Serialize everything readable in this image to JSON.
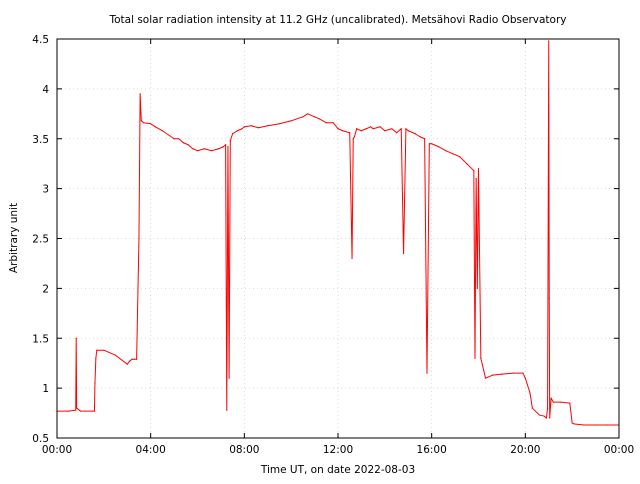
{
  "chart_data": {
    "type": "line",
    "title": "Total solar radiation intensity at 11.2 GHz (uncalibrated). Metsähovi Radio Observatory",
    "xlabel": "Time UT, on date 2022-08-03",
    "ylabel": "Arbitrary unit",
    "xlim": [
      0,
      24
    ],
    "ylim": [
      0.5,
      4.5
    ],
    "grid": true,
    "x_ticks": [
      {
        "value": 0,
        "label": "00:00"
      },
      {
        "value": 4,
        "label": "04:00"
      },
      {
        "value": 8,
        "label": "08:00"
      },
      {
        "value": 12,
        "label": "12:00"
      },
      {
        "value": 16,
        "label": "16:00"
      },
      {
        "value": 20,
        "label": "20:00"
      },
      {
        "value": 24,
        "label": "00:00"
      }
    ],
    "y_ticks": [
      {
        "value": 0.5,
        "label": "0.5"
      },
      {
        "value": 1.0,
        "label": "1"
      },
      {
        "value": 1.5,
        "label": "1.5"
      },
      {
        "value": 2.0,
        "label": "2"
      },
      {
        "value": 2.5,
        "label": "2.5"
      },
      {
        "value": 3.0,
        "label": "3"
      },
      {
        "value": 3.5,
        "label": "3.5"
      },
      {
        "value": 4.0,
        "label": "4"
      },
      {
        "value": 4.5,
        "label": "4.5"
      }
    ],
    "series": [
      {
        "color": "#ff0000",
        "x": [
          0.0,
          0.5,
          0.8,
          0.82,
          0.84,
          1.0,
          1.5,
          1.6,
          1.62,
          1.66,
          1.7,
          2.0,
          2.5,
          3.0,
          3.1,
          3.2,
          3.3,
          3.4,
          3.5,
          3.55,
          3.6,
          3.7,
          4.0,
          4.2,
          4.5,
          5.0,
          5.2,
          5.4,
          5.6,
          5.8,
          6.0,
          6.3,
          6.6,
          6.9,
          7.1,
          7.2,
          7.25,
          7.3,
          7.35,
          7.4,
          7.5,
          7.7,
          7.9,
          8.0,
          8.3,
          8.6,
          9.0,
          9.5,
          10.0,
          10.5,
          10.7,
          11.0,
          11.2,
          11.5,
          11.8,
          12.0,
          12.2,
          12.5,
          12.6,
          12.65,
          12.7,
          12.8,
          13.0,
          13.2,
          13.4,
          13.5,
          13.8,
          14.0,
          14.3,
          14.5,
          14.7,
          14.8,
          14.9,
          15.0,
          15.3,
          15.5,
          15.7,
          15.8,
          15.9,
          16.0,
          16.3,
          16.6,
          16.9,
          17.2,
          17.5,
          17.8,
          17.85,
          17.9,
          17.95,
          18.0,
          18.1,
          18.3,
          18.6,
          19.0,
          19.5,
          19.9,
          20.0,
          20.2,
          20.3,
          20.6,
          20.8,
          20.9,
          20.95,
          21.0,
          21.02,
          21.04,
          21.1,
          21.2,
          21.5,
          21.9,
          22.0,
          22.1,
          22.5,
          23.0,
          23.5,
          24.0
        ],
        "y": [
          0.77,
          0.77,
          0.78,
          1.5,
          0.8,
          0.77,
          0.77,
          0.77,
          1.05,
          1.3,
          1.38,
          1.38,
          1.33,
          1.24,
          1.27,
          1.29,
          1.29,
          1.29,
          2.5,
          3.95,
          3.68,
          3.66,
          3.65,
          3.62,
          3.58,
          3.5,
          3.5,
          3.46,
          3.44,
          3.4,
          3.38,
          3.4,
          3.38,
          3.4,
          3.42,
          3.44,
          0.78,
          3.42,
          1.1,
          3.48,
          3.55,
          3.58,
          3.6,
          3.62,
          3.63,
          3.61,
          3.63,
          3.65,
          3.68,
          3.72,
          3.75,
          3.72,
          3.7,
          3.66,
          3.66,
          3.6,
          3.58,
          3.56,
          2.3,
          3.5,
          3.52,
          3.6,
          3.58,
          3.6,
          3.62,
          3.6,
          3.62,
          3.58,
          3.6,
          3.56,
          3.6,
          2.35,
          3.6,
          3.58,
          3.55,
          3.52,
          3.5,
          1.15,
          3.45,
          3.45,
          3.42,
          3.38,
          3.35,
          3.32,
          3.25,
          3.18,
          1.3,
          3.1,
          2.0,
          3.2,
          1.3,
          1.1,
          1.13,
          1.14,
          1.15,
          1.15,
          1.1,
          0.95,
          0.8,
          0.73,
          0.72,
          0.7,
          0.8,
          4.48,
          1.9,
          0.7,
          0.9,
          0.86,
          0.86,
          0.85,
          0.65,
          0.64,
          0.63,
          0.63,
          0.63,
          0.63
        ]
      }
    ]
  }
}
